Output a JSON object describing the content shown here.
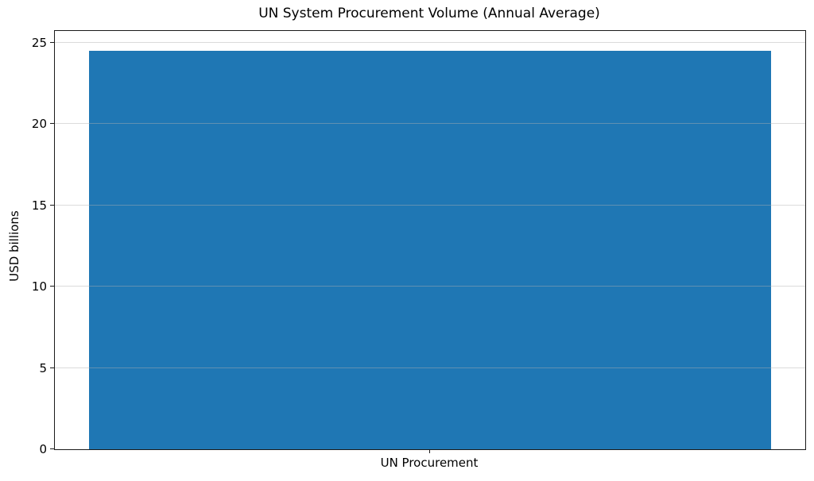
{
  "chart_data": {
    "type": "bar",
    "title": "UN System Procurement Volume (Annual Average)",
    "categories": [
      "UN Procurement"
    ],
    "values": [
      24.5
    ],
    "xlabel": "",
    "ylabel": "USD billions",
    "ylim": [
      0,
      25.725
    ],
    "yticks": [
      0,
      5,
      10,
      15,
      20,
      25
    ],
    "bar_color": "#1f77b4",
    "grid": "horizontal",
    "grid_color": "#b0b0b0",
    "legend": "none",
    "background": "#ffffff"
  }
}
